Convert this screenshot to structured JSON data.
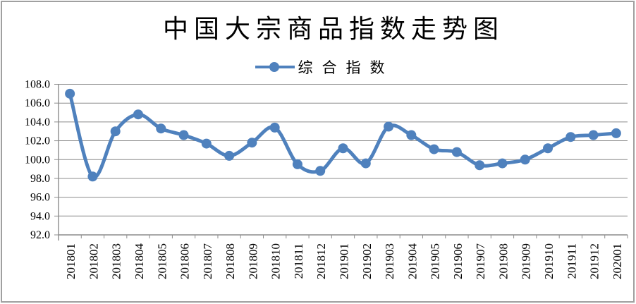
{
  "chart_data": {
    "type": "line",
    "title": "中国大宗商品指数走势图",
    "categories": [
      "201801",
      "201802",
      "201803",
      "201804",
      "201805",
      "201806",
      "201807",
      "201808",
      "201809",
      "201810",
      "201811",
      "201812",
      "201901",
      "201902",
      "201903",
      "201904",
      "201905",
      "201906",
      "201907",
      "201908",
      "201909",
      "201910",
      "201911",
      "201912",
      "202001"
    ],
    "series": [
      {
        "name": "综合指数",
        "values": [
          107.0,
          98.2,
          103.0,
          104.8,
          103.3,
          102.6,
          101.7,
          100.4,
          101.8,
          103.4,
          99.5,
          98.8,
          101.2,
          99.6,
          103.5,
          102.6,
          101.1,
          100.8,
          99.4,
          99.6,
          100.0,
          101.2,
          102.4,
          102.6,
          102.8
        ]
      }
    ],
    "ylim": [
      92.0,
      108.0
    ],
    "ytick_step": 2.0,
    "xlabel": "",
    "ylabel": "",
    "grid": "horizontal",
    "legend_position": "top-center",
    "smooth_line": true,
    "colors": {
      "line": "#4F81BD",
      "marker": "#4F81BD",
      "grid": "#8c8c8c",
      "axis": "#8c8c8c",
      "text": "#000000",
      "frame_border": "#a0a0a0",
      "background": "#ffffff"
    }
  }
}
